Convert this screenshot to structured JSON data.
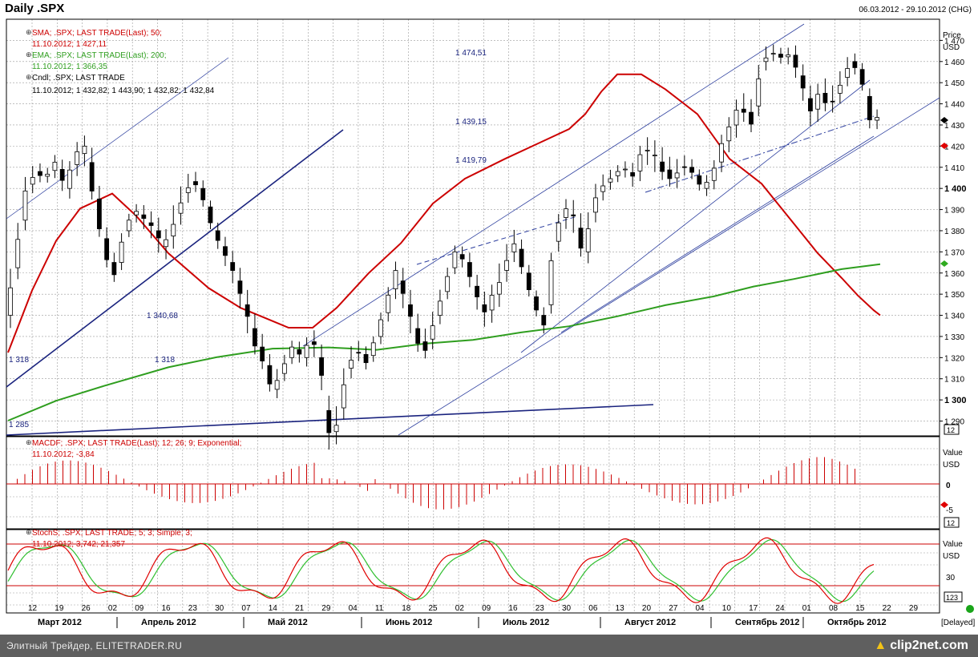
{
  "header": {
    "title": "Daily .SPX",
    "date_range": "06.03.2012 - 29.10.2012 (CHG)"
  },
  "main_pane": {
    "axis_title": "Price",
    "axis_unit": "USD",
    "y_ticks": [
      "1 470",
      "1 460",
      "1 450",
      "1 440",
      "1 430",
      "1 420",
      "1 410",
      "1 400",
      "1 390",
      "1 380",
      "1 370",
      "1 360",
      "1 350",
      "1 340",
      "1 330",
      "1 320",
      "1 310",
      "1 300",
      "1 290"
    ],
    "y_tick_values": [
      1470,
      1460,
      1450,
      1440,
      1430,
      1420,
      1410,
      1400,
      1390,
      1380,
      1370,
      1360,
      1350,
      1340,
      1330,
      1320,
      1310,
      1300,
      1290
    ],
    "scale_box": "12",
    "legend": [
      {
        "name": "SMA; .SPX; LAST TRADE(Last); 50;",
        "value": "11.10.2012; 1 427,11",
        "color": "#cc0000"
      },
      {
        "name": "EMA; .SPX; LAST TRADE(Last); 200;",
        "value": "11.10.2012; 1 366,35",
        "color": "#2f9e1f"
      },
      {
        "name": "Cndl; .SPX; LAST TRADE",
        "value": "11.10.2012; 1 432,82; 1 443,90; 1 432,82; 1 432,84",
        "color": "#000000"
      }
    ],
    "annotations": [
      "1 474,51",
      "1 439,15",
      "1 419,79",
      "1 340,68",
      "1 318",
      "1 318",
      "1 285"
    ]
  },
  "macd_pane": {
    "legend_name": "MACDF; .SPX; LAST TRADE(Last); 12; 26; 9; Exponential;",
    "legend_value": "11.10.2012; -3,84",
    "axis_title": "Value",
    "axis_unit": "USD",
    "y_ticks": [
      "0",
      "-5"
    ],
    "scale_box": "12"
  },
  "stoch_pane": {
    "legend_name": "StochS; .SPX; LAST TRADE; 5; 3; Simple; 3;",
    "legend_value": "11.10.2012; 3,742; 21,357",
    "axis_title": "Value",
    "axis_unit": "USD",
    "y_ticks": [
      "30"
    ],
    "scale_box": "123"
  },
  "x_axis": {
    "days": [
      "12",
      "19",
      "26",
      "02",
      "09",
      "16",
      "23",
      "30",
      "07",
      "14",
      "21",
      "29",
      "04",
      "11",
      "18",
      "25",
      "02",
      "09",
      "16",
      "23",
      "30",
      "06",
      "13",
      "20",
      "27",
      "04",
      "10",
      "17",
      "24",
      "01",
      "08",
      "15",
      "22",
      "29"
    ],
    "months": [
      "Март 2012",
      "Апрель 2012",
      "Май 2012",
      "Июнь 2012",
      "Июль 2012",
      "Август 2012",
      "Сентябрь 2012",
      "Октябрь 2012"
    ],
    "delayed": "[Delayed]"
  },
  "status_bar": {
    "left": "Элитный Трейдер, ELITETRADER.RU",
    "logo": "clip2net.com"
  },
  "chart_data": {
    "type": "candlestick",
    "title": "Daily .SPX",
    "ylabel": "Price",
    "ylim": [
      1283,
      1480
    ],
    "sma50_last": 1427.11,
    "ema200_last": 1366.35,
    "last_candle": {
      "date": "11.10.2012",
      "open": 1432.82,
      "high": 1443.9,
      "low": 1432.82,
      "close": 1432.84
    },
    "macd_last": -3.84,
    "stoch_last": [
      3.742,
      21.357
    ],
    "colors": {
      "sma": "#cc0000",
      "ema": "#2f9e1f",
      "macd": "#cc0000",
      "stoch_k": "#e00000",
      "stoch_d": "#2fbf2f",
      "trend": "#1a237e"
    }
  }
}
